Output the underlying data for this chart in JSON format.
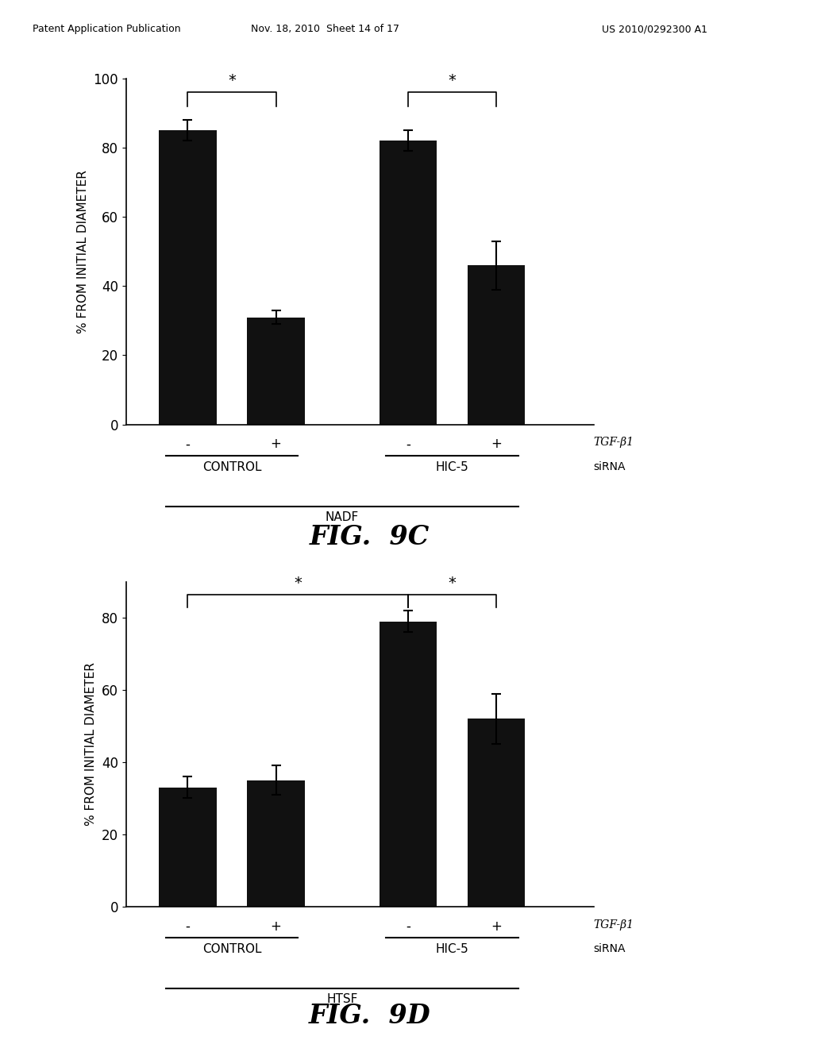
{
  "fig9c": {
    "bars": [
      85,
      31,
      82,
      46
    ],
    "errors": [
      3,
      2,
      3,
      7
    ],
    "ylim": [
      0,
      100
    ],
    "yticks": [
      0,
      20,
      40,
      60,
      80,
      100
    ],
    "ylabel": "% FROM INITIAL DIAMETER",
    "sign_labels": [
      "-",
      "+",
      "-",
      "+"
    ],
    "group_labels": [
      "CONTROL",
      "HIC-5"
    ],
    "bottom_label": "NADF",
    "tgf_label": "TGF-β1",
    "sirna_label": "siRNA",
    "fig_label": "FIG.  9C",
    "bracket_style": "9c",
    "bar_color": "#111111"
  },
  "fig9d": {
    "bars": [
      33,
      35,
      79,
      52
    ],
    "errors": [
      3,
      4,
      3,
      7
    ],
    "ylim": [
      0,
      90
    ],
    "yticks": [
      0,
      20,
      40,
      60,
      80
    ],
    "ylabel": "% FROM INITIAL DIAMETER",
    "sign_labels": [
      "-",
      "+",
      "-",
      "+"
    ],
    "group_labels": [
      "CONTROL",
      "HIC-5"
    ],
    "bottom_label": "HTSF",
    "tgf_label": "TGF-β1",
    "sirna_label": "siRNA",
    "fig_label": "FIG.  9D",
    "bracket_style": "9d",
    "bar_color": "#111111"
  },
  "header": {
    "left": "Patent Application Publication",
    "center": "Nov. 18, 2010  Sheet 14 of 17",
    "right": "US 2010/0292300 A1"
  },
  "x_positions": [
    0.7,
    1.7,
    3.2,
    4.2
  ],
  "bar_width": 0.65,
  "xlim": [
    0.0,
    5.3
  ]
}
